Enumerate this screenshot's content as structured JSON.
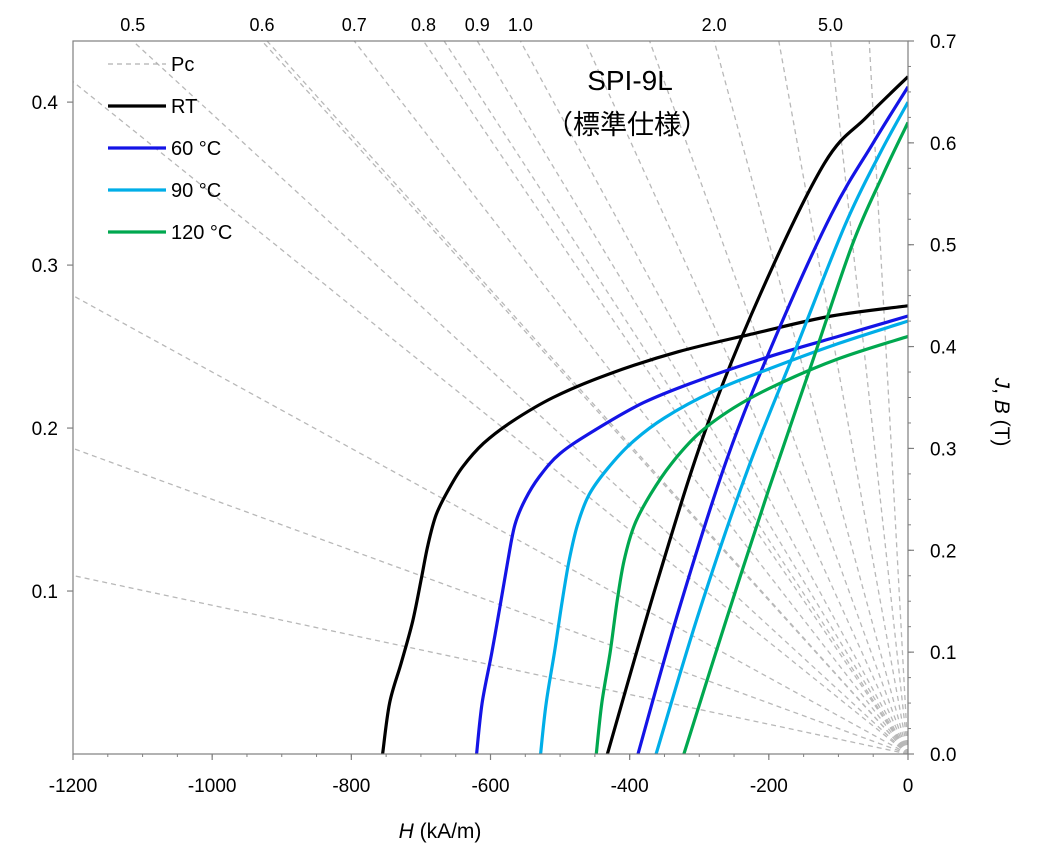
{
  "chart_data": {
    "type": "line",
    "title": "SPI-9L",
    "subtitle": "（標準仕様）",
    "xlabel_italic": "H",
    "xlabel_rest": " (kA/m)",
    "ylabel_italic_J": "J",
    "ylabel_sep": ", ",
    "ylabel_italic_B": "B",
    "ylabel_rest": " (T)",
    "xlim": [
      -1200,
      0
    ],
    "y_right_lim": [
      0.0,
      0.7
    ],
    "y_left_lim": [
      0.0,
      0.4375
    ],
    "x_ticks": [
      {
        "value": -1200,
        "label": "-1200"
      },
      {
        "value": -1000,
        "label": "-1000"
      },
      {
        "value": -800,
        "label": "-800"
      },
      {
        "value": -600,
        "label": "-600"
      },
      {
        "value": -400,
        "label": "-400"
      },
      {
        "value": -200,
        "label": "-200"
      },
      {
        "value": 0,
        "label": "0"
      }
    ],
    "y_right_ticks": [
      {
        "value": 0.0,
        "label": "0.0"
      },
      {
        "value": 0.1,
        "label": "0.1"
      },
      {
        "value": 0.2,
        "label": "0.2"
      },
      {
        "value": 0.3,
        "label": "0.3"
      },
      {
        "value": 0.4,
        "label": "0.4"
      },
      {
        "value": 0.5,
        "label": "0.5"
      },
      {
        "value": 0.6,
        "label": "0.6"
      },
      {
        "value": 0.7,
        "label": "0.7"
      }
    ],
    "y_left_ticks": [
      {
        "value": 0.1,
        "label": "0.1"
      },
      {
        "value": 0.2,
        "label": "0.2"
      },
      {
        "value": 0.3,
        "label": "0.3"
      },
      {
        "value": 0.4,
        "label": "0.4"
      }
    ],
    "pc_lines": [
      {
        "value": 0.5,
        "label": "0.5"
      },
      {
        "value": 0.6,
        "label": "0.6"
      },
      {
        "value": 0.7,
        "label": "0.7"
      },
      {
        "value": 0.8,
        "label": "0.8"
      },
      {
        "value": 0.9,
        "label": "0.9"
      },
      {
        "value": 1.0,
        "label": "1.0"
      },
      {
        "value": 1.2,
        "label": ""
      },
      {
        "value": 1.5,
        "label": ""
      },
      {
        "value": 2.0,
        "label": "2.0"
      },
      {
        "value": 3.0,
        "label": ""
      },
      {
        "value": 5.0,
        "label": "5.0"
      },
      {
        "value": 10.0,
        "label": ""
      }
    ],
    "pc_left_lines": [
      {
        "slope_y_per_x": 0.000146
      },
      {
        "slope_y_per_x": 0.00025
      },
      {
        "slope_y_per_x": 0.000375
      },
      {
        "slope_y_per_x": 0.00055
      },
      {
        "slope_y_per_x": 0.00076
      },
      {
        "slope_y_per_x": 0.00105
      }
    ],
    "legend": {
      "placement": "top-left",
      "entries": [
        {
          "label": "Pc",
          "color": "#b0b0b0",
          "dashed": true
        },
        {
          "label": "RT",
          "color": "#000000"
        },
        {
          "label": "60 °C",
          "color": "#1414e6"
        },
        {
          "label": "90 °C",
          "color": "#00aee8"
        },
        {
          "label": "120 °C",
          "color": "#00a84f"
        }
      ]
    },
    "series": [
      {
        "name": "RT",
        "color": "#000000",
        "J": [
          [
            -755,
            0.0
          ],
          [
            -745,
            0.05
          ],
          [
            -728,
            0.09
          ],
          [
            -712,
            0.13
          ],
          [
            -700,
            0.17
          ],
          [
            -690,
            0.205
          ],
          [
            -678,
            0.235
          ],
          [
            -660,
            0.26
          ],
          [
            -640,
            0.282
          ],
          [
            -610,
            0.305
          ],
          [
            -570,
            0.326
          ],
          [
            -510,
            0.35
          ],
          [
            -430,
            0.373
          ],
          [
            -330,
            0.395
          ],
          [
            -220,
            0.413
          ],
          [
            -110,
            0.43
          ],
          [
            0,
            0.44
          ]
        ],
        "B": [
          [
            -432,
            0.0
          ],
          [
            -360,
            0.17
          ],
          [
            -290,
            0.32
          ],
          [
            -210,
            0.455
          ],
          [
            -120,
            0.58
          ],
          [
            -60,
            0.625
          ],
          [
            0,
            0.665
          ]
        ]
      },
      {
        "name": "60 °C",
        "color": "#1414e6",
        "J": [
          [
            -620,
            0.0
          ],
          [
            -612,
            0.05
          ],
          [
            -598,
            0.1
          ],
          [
            -585,
            0.15
          ],
          [
            -575,
            0.19
          ],
          [
            -565,
            0.225
          ],
          [
            -550,
            0.25
          ],
          [
            -530,
            0.272
          ],
          [
            -500,
            0.295
          ],
          [
            -450,
            0.318
          ],
          [
            -380,
            0.345
          ],
          [
            -300,
            0.367
          ],
          [
            -200,
            0.39
          ],
          [
            -100,
            0.41
          ],
          [
            0,
            0.43
          ]
        ],
        "B": [
          [
            -388,
            0.0
          ],
          [
            -330,
            0.14
          ],
          [
            -260,
            0.29
          ],
          [
            -190,
            0.41
          ],
          [
            -110,
            0.53
          ],
          [
            -50,
            0.6
          ],
          [
            0,
            0.655
          ]
        ]
      },
      {
        "name": "90 °C",
        "color": "#00aee8",
        "J": [
          [
            -528,
            0.0
          ],
          [
            -520,
            0.05
          ],
          [
            -508,
            0.1
          ],
          [
            -497,
            0.15
          ],
          [
            -487,
            0.19
          ],
          [
            -475,
            0.225
          ],
          [
            -458,
            0.255
          ],
          [
            -432,
            0.28
          ],
          [
            -398,
            0.305
          ],
          [
            -350,
            0.33
          ],
          [
            -280,
            0.356
          ],
          [
            -200,
            0.378
          ],
          [
            -100,
            0.403
          ],
          [
            0,
            0.425
          ]
        ],
        "B": [
          [
            -362,
            0.0
          ],
          [
            -300,
            0.14
          ],
          [
            -230,
            0.28
          ],
          [
            -160,
            0.4
          ],
          [
            -90,
            0.52
          ],
          [
            -40,
            0.59
          ],
          [
            0,
            0.64
          ]
        ]
      },
      {
        "name": "120 °C",
        "color": "#00a84f",
        "J": [
          [
            -448,
            0.0
          ],
          [
            -440,
            0.05
          ],
          [
            -428,
            0.1
          ],
          [
            -418,
            0.15
          ],
          [
            -408,
            0.19
          ],
          [
            -393,
            0.225
          ],
          [
            -370,
            0.255
          ],
          [
            -340,
            0.285
          ],
          [
            -300,
            0.315
          ],
          [
            -250,
            0.34
          ],
          [
            -190,
            0.362
          ],
          [
            -100,
            0.388
          ],
          [
            0,
            0.41
          ]
        ],
        "B": [
          [
            -322,
            0.0
          ],
          [
            -262,
            0.13
          ],
          [
            -200,
            0.26
          ],
          [
            -140,
            0.38
          ],
          [
            -80,
            0.5
          ],
          [
            -35,
            0.57
          ],
          [
            0,
            0.62
          ]
        ]
      }
    ]
  }
}
